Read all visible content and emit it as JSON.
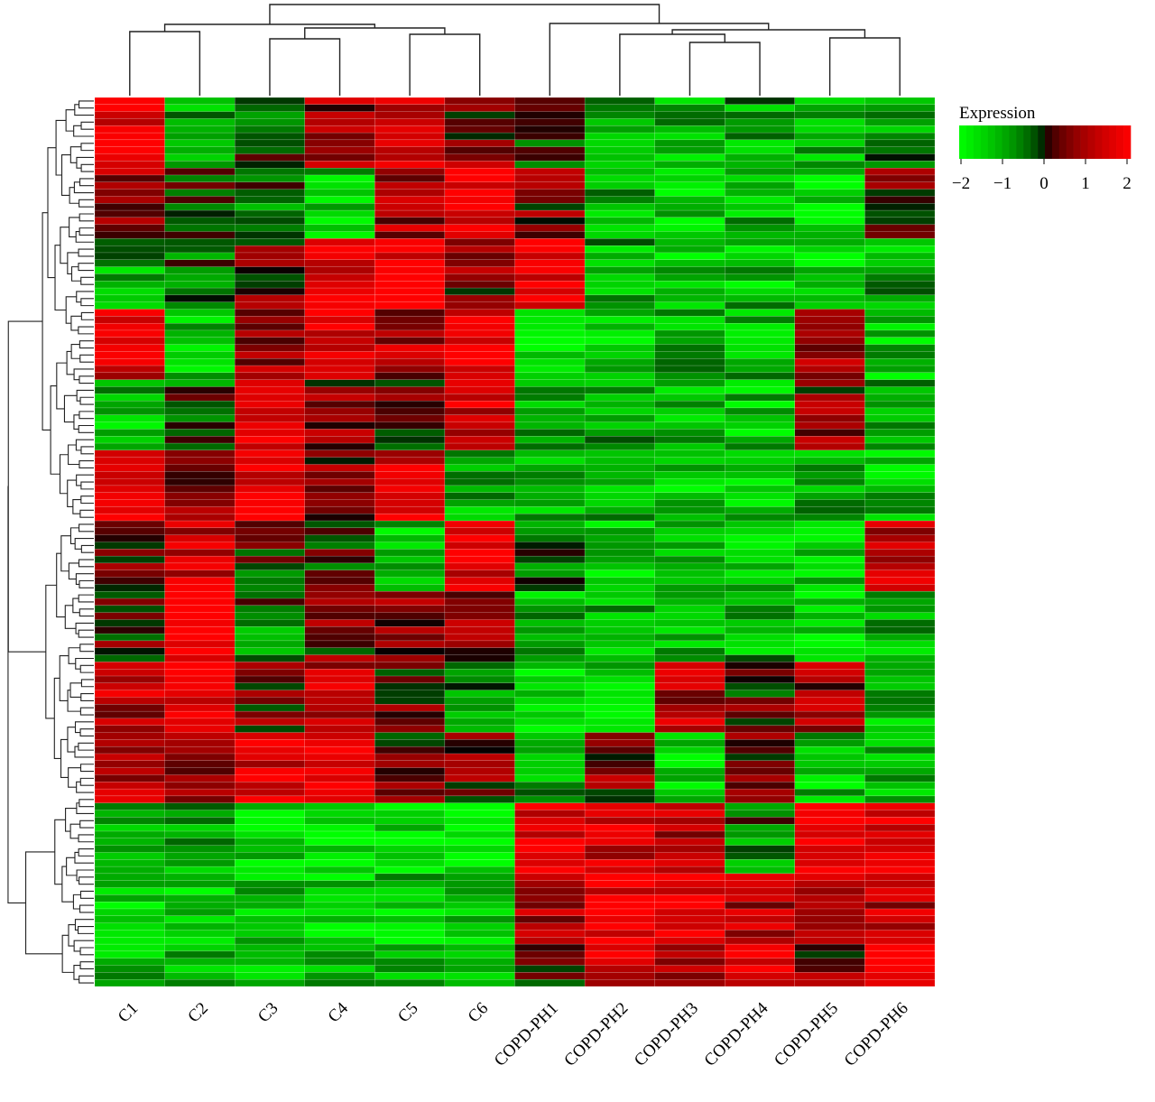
{
  "chart_data": {
    "type": "heatmap",
    "title": "",
    "columns": [
      "C1",
      "C2",
      "C3",
      "C4",
      "C5",
      "C6",
      "COPD-PH1",
      "COPD-PH2",
      "COPD-PH3",
      "COPD-PH4",
      "COPD-PH5",
      "COPD-PH6"
    ],
    "row_count": 126,
    "value_range": [
      -2,
      2
    ],
    "legend": {
      "title": "Expression",
      "ticks": [
        "−2",
        "−1",
        "0",
        "1",
        "2"
      ],
      "tick_values": [
        -2,
        -1,
        0,
        1,
        2
      ],
      "placement": "top-right"
    },
    "colors": {
      "low": "#00ff00",
      "mid": "#000000",
      "high": "#ff0000",
      "gridline": "#ffffff"
    },
    "row_blocks": [
      {
        "rows": [
          0,
          9
        ],
        "values": [
          1.8,
          -0.9,
          -0.2,
          0.8,
          1.5,
          0.6,
          -0.3,
          -1.0,
          -1.0,
          -0.9,
          -1.1,
          -0.8
        ]
      },
      {
        "rows": [
          10,
          19
        ],
        "values": [
          0.8,
          -0.2,
          -0.5,
          -1.2,
          0.9,
          1.9,
          0.6,
          -1.1,
          -1.5,
          -1.2,
          -1.6,
          0.4
        ]
      },
      {
        "rows": [
          20,
          29
        ],
        "values": [
          -0.9,
          -0.3,
          0.3,
          1.3,
          1.9,
          0.5,
          1.9,
          -1.0,
          -1.3,
          -1.2,
          -1.6,
          -1.0
        ]
      },
      {
        "rows": [
          30,
          39
        ],
        "values": [
          1.2,
          -1.3,
          0.8,
          1.7,
          1.0,
          1.9,
          -1.4,
          -1.2,
          -1.0,
          -1.1,
          0.8,
          -1.3
        ]
      },
      {
        "rows": [
          40,
          49
        ],
        "values": [
          -1.1,
          -0.3,
          1.9,
          0.6,
          0.3,
          1.3,
          -0.8,
          -0.9,
          -1.0,
          -1.2,
          0.6,
          -1.1
        ]
      },
      {
        "rows": [
          50,
          59
        ],
        "values": [
          1.8,
          0.8,
          1.7,
          0.5,
          1.6,
          -0.9,
          -1.0,
          -0.9,
          -1.3,
          -1.2,
          -1.0,
          -1.2
        ]
      },
      {
        "rows": [
          60,
          69
        ],
        "values": [
          0.6,
          1.2,
          0.0,
          -0.1,
          -1.3,
          1.6,
          -0.5,
          -1.4,
          -1.0,
          -1.2,
          -1.2,
          1.2
        ]
      },
      {
        "rows": [
          70,
          79
        ],
        "values": [
          0.2,
          1.9,
          -0.6,
          0.4,
          0.7,
          0.6,
          -1.1,
          -1.2,
          -1.1,
          -1.0,
          -1.4,
          -1.0
        ]
      },
      {
        "rows": [
          80,
          89
        ],
        "values": [
          1.1,
          1.8,
          0.5,
          1.1,
          0.3,
          -0.8,
          -1.6,
          -1.2,
          1.0,
          0.2,
          0.8,
          -1.2
        ]
      },
      {
        "rows": [
          90,
          99
        ],
        "values": [
          1.3,
          0.6,
          1.6,
          1.8,
          0.4,
          0.5,
          -1.0,
          0.6,
          -1.3,
          0.5,
          -1.3,
          -1.3
        ]
      },
      {
        "rows": [
          100,
          109
        ],
        "values": [
          -1.3,
          -1.1,
          -1.5,
          -1.8,
          -1.6,
          -1.9,
          1.8,
          1.3,
          1.2,
          -0.6,
          1.8,
          1.6
        ]
      },
      {
        "rows": [
          110,
          119
        ],
        "values": [
          -1.4,
          -1.4,
          -1.3,
          -1.4,
          -1.3,
          -1.2,
          1.1,
          1.8,
          1.8,
          1.0,
          0.9,
          1.2
        ]
      },
      {
        "rows": [
          120,
          125
        ],
        "values": [
          -1.2,
          -1.3,
          -1.4,
          -1.3,
          -0.9,
          -1.2,
          0.4,
          1.6,
          0.7,
          1.9,
          0.6,
          1.7
        ]
      }
    ],
    "column_dendrogram_order": [
      "C1",
      "C2",
      "C3",
      "C4",
      "C5",
      "C6",
      "COPD-PH1",
      "COPD-PH2",
      "COPD-PH3",
      "COPD-PH4",
      "COPD-PH5",
      "COPD-PH6"
    ],
    "row_dendrogram": true
  }
}
